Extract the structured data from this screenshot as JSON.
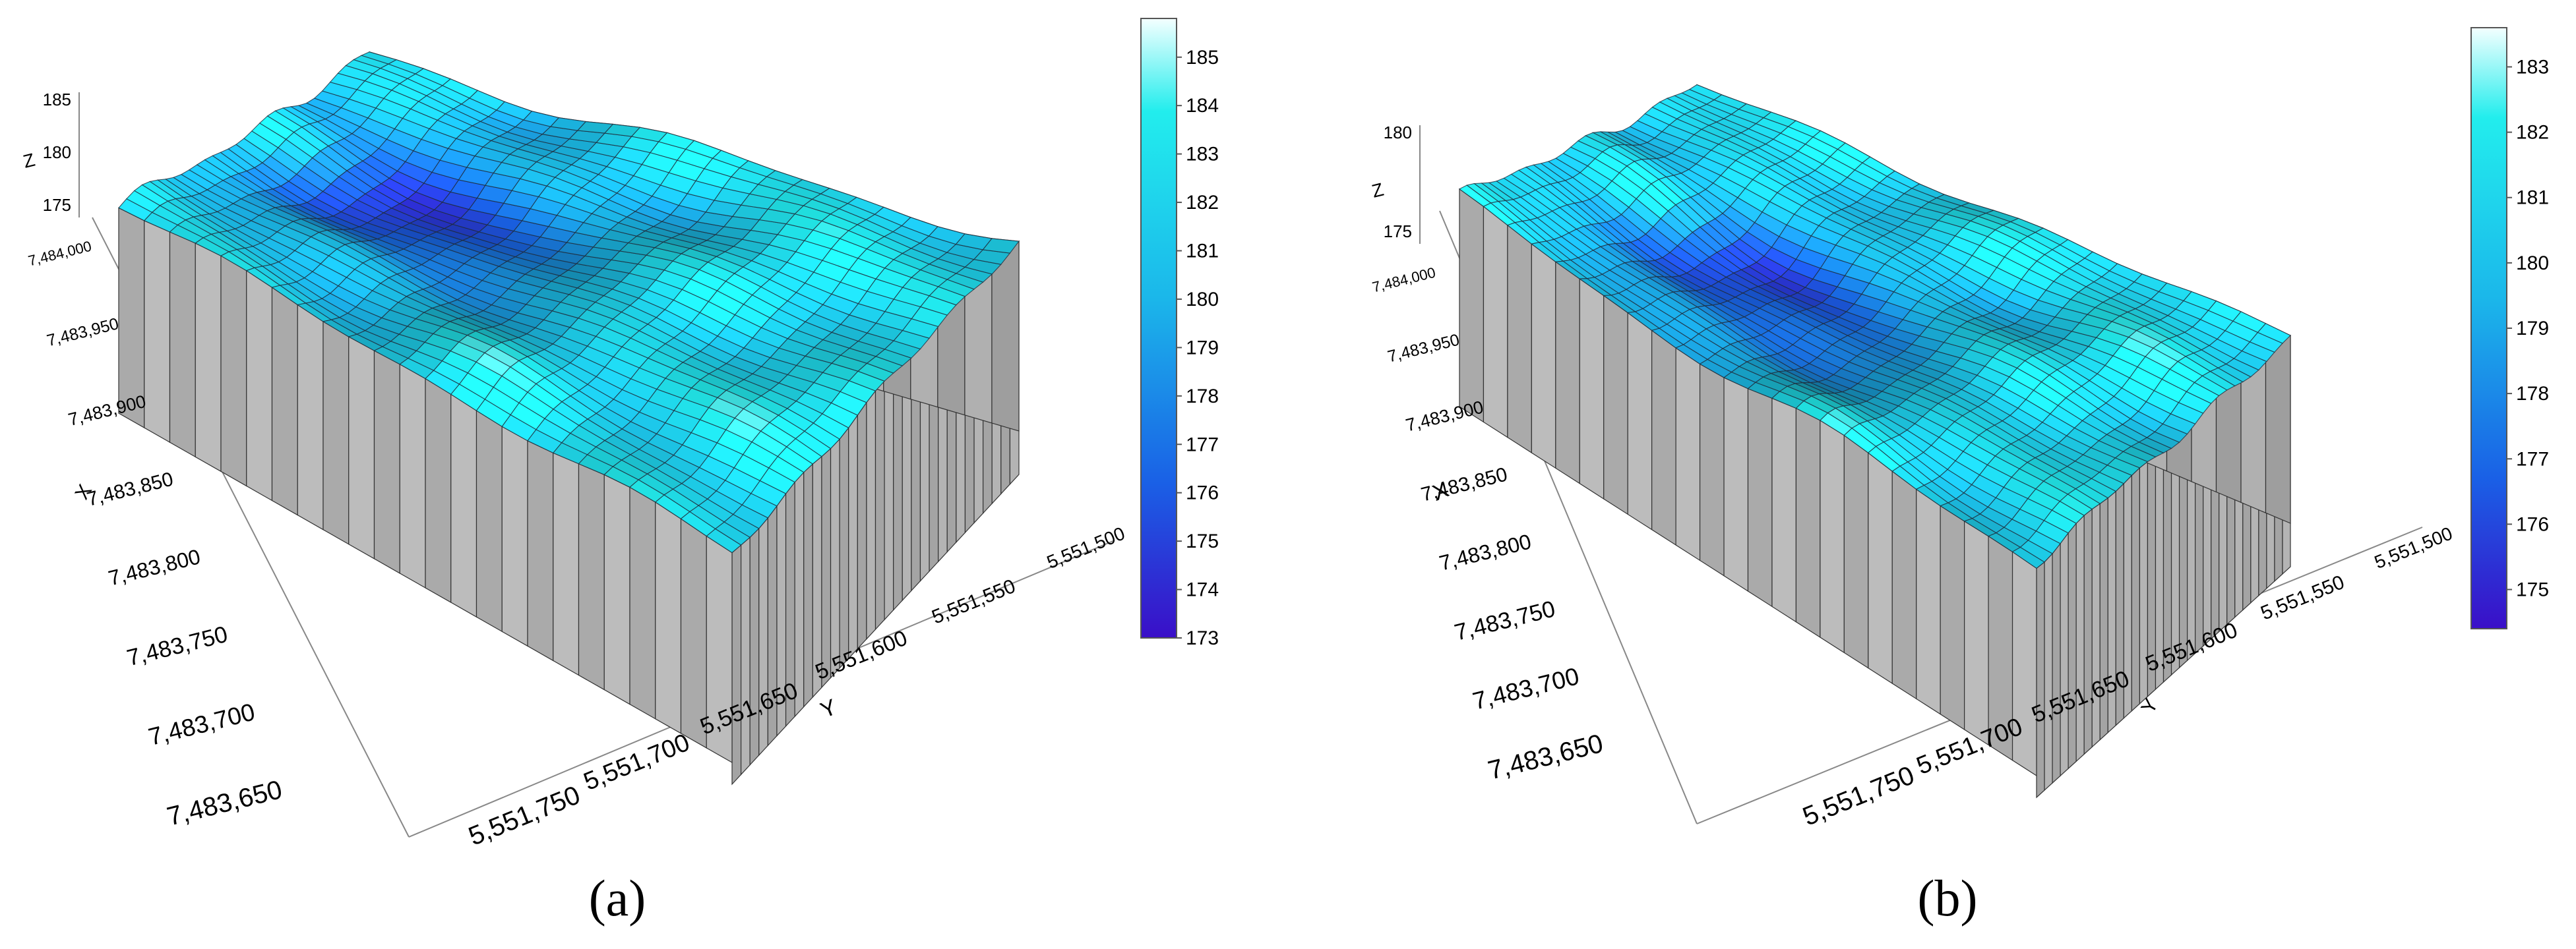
{
  "captions": {
    "a": "(a)",
    "b": "(b)"
  },
  "chart_data": [
    {
      "type": "surface3d",
      "panel": "a",
      "axes": {
        "z_label": "Z",
        "x_label": "X",
        "y_label": "Y",
        "z_ticks": [
          "175",
          "180",
          "185"
        ],
        "left_ticks": [
          "7,484,000",
          "7,483,950",
          "7,483,900",
          "7,483,850",
          "7,483,800",
          "7,483,750",
          "7,483,700",
          "7,483,650"
        ],
        "front_ticks": [
          "5,551,750",
          "5,551,700",
          "5,551,650",
          "5,551,600",
          "5,551,550",
          "5,551,500"
        ],
        "zlim": [
          173,
          185
        ]
      },
      "colorbar": {
        "ticks": [
          185,
          184,
          183,
          182,
          181,
          180,
          179,
          178,
          177,
          176,
          175,
          174,
          173
        ],
        "range": [
          173,
          185.8
        ]
      },
      "colors": {
        "low": "#3a0fc8",
        "mid_low": "#1a60e6",
        "mid": "#1bb7ea",
        "high": "#22eded",
        "top": "#f4ffff",
        "wall": "#a8a8a8"
      }
    },
    {
      "type": "surface3d",
      "panel": "b",
      "axes": {
        "z_label": "Z",
        "x_label": "X",
        "y_label": "Y",
        "z_ticks": [
          "175",
          "180"
        ],
        "left_ticks": [
          "7,484,000",
          "7,483,950",
          "7,483,900",
          "7,483,850",
          "7,483,800",
          "7,483,750",
          "7,483,700",
          "7,483,650"
        ],
        "front_ticks": [
          "5,551,750",
          "5,551,700",
          "5,551,650",
          "5,551,600",
          "5,551,550",
          "5,551,500"
        ],
        "zlim": [
          174.5,
          183.5
        ]
      },
      "colorbar": {
        "ticks": [
          183,
          182,
          181,
          180,
          179,
          178,
          177,
          176,
          175
        ],
        "range": [
          174.4,
          183.6
        ]
      },
      "colors": {
        "low": "#3a0fc8",
        "mid_low": "#1a60e6",
        "mid": "#1bb7ea",
        "high": "#22eded",
        "top": "#f4ffff",
        "wall": "#a8a8a8"
      }
    }
  ]
}
